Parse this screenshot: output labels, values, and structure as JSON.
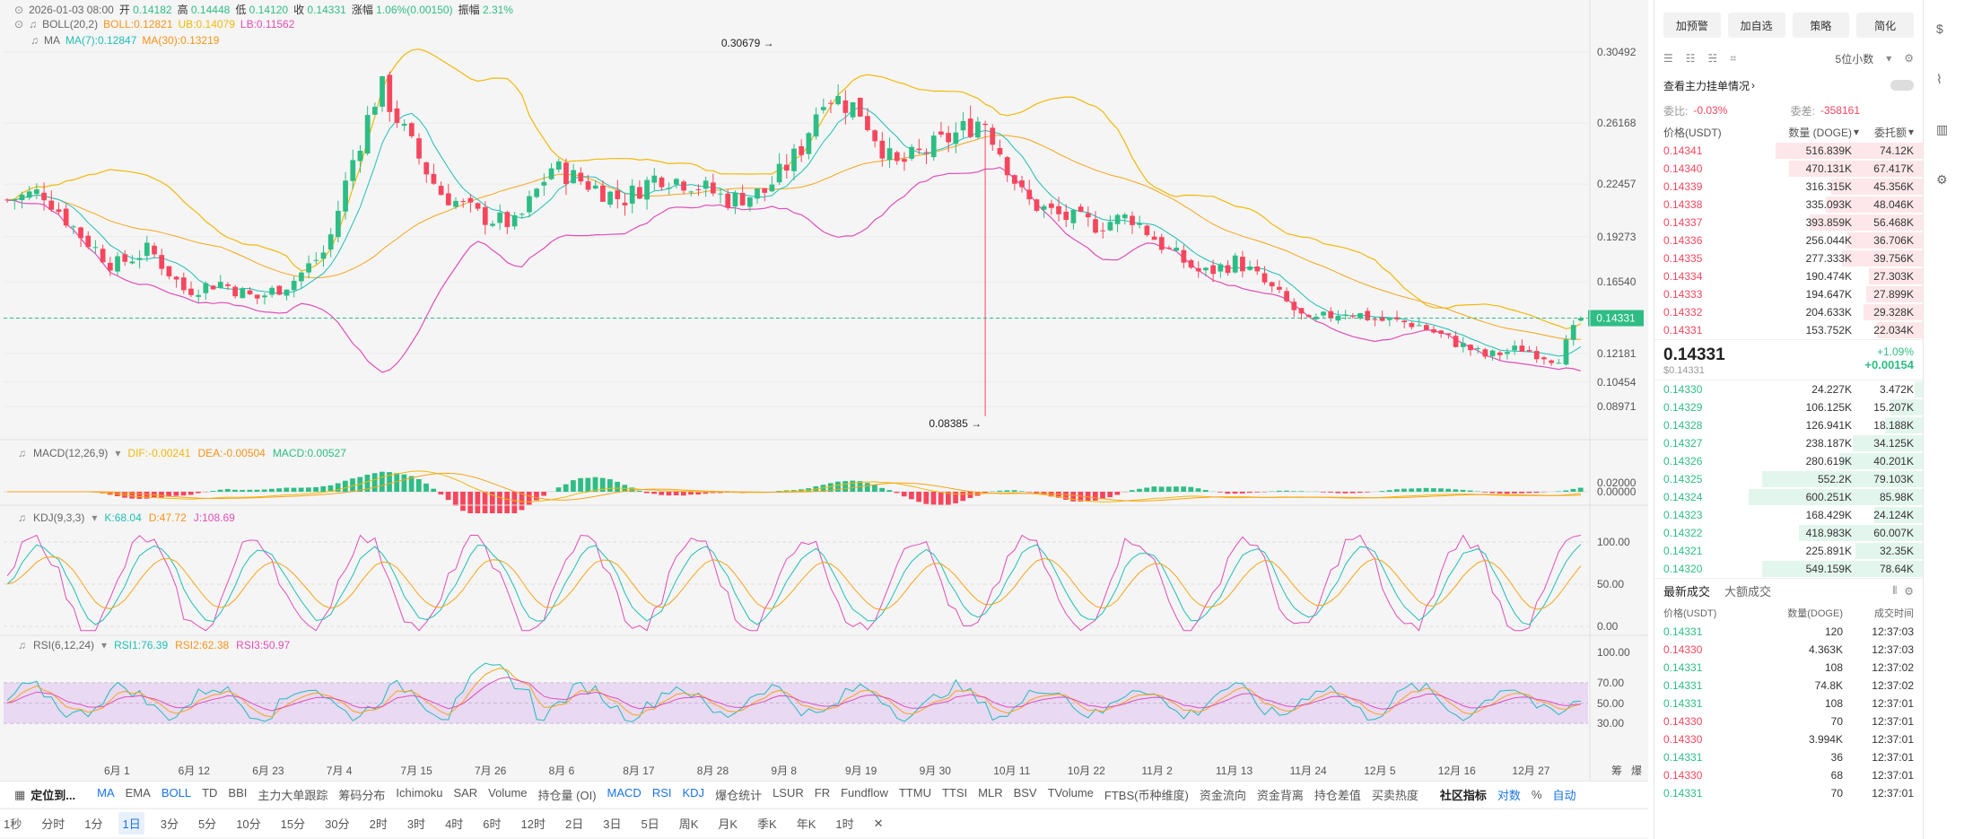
{
  "header": {
    "datetime": "2026-01-03 08:00",
    "open_label": "开",
    "open": "0.14182",
    "high_label": "高",
    "high": "0.14448",
    "low_label": "低",
    "low": "0.14120",
    "close_label": "收",
    "close": "0.14331",
    "change_label": "涨幅",
    "change": "1.06%(0.00150)",
    "amplitude_label": "振幅",
    "amplitude": "2.31%"
  },
  "boll": {
    "label": "BOLL(20,2)",
    "boll": "BOLL:0.12821",
    "ub": "UB:0.14079",
    "lb": "LB:0.11562"
  },
  "ma": {
    "label": "MA",
    "ma7": "MA(7):0.12847",
    "ma30": "MA(30):0.13219"
  },
  "price_axis": [
    "0.30492",
    "0.26168",
    "0.22457",
    "0.19273",
    "0.16540",
    "0.14331",
    "0.12181",
    "0.10454",
    "0.08971"
  ],
  "annotations": {
    "high_mark": "0.30679",
    "low_mark": "0.08385"
  },
  "macd": {
    "label": "MACD(12,26,9)",
    "dif": "DIF:-0.00241",
    "dea": "DEA:-0.00504",
    "macd": "MACD:0.00527",
    "axis": [
      "0.02000",
      "0.00000"
    ]
  },
  "kdj": {
    "label": "KDJ(9,3,3)",
    "k": "K:68.04",
    "d": "D:47.72",
    "j": "J:108.69",
    "axis": [
      "100.00",
      "50.00",
      "0.00"
    ]
  },
  "rsi": {
    "label": "RSI(6,12,24)",
    "rsi1": "RSI1:76.39",
    "rsi2": "RSI2:62.38",
    "rsi3": "RSI3:50.97",
    "axis": [
      "100.00",
      "70.00",
      "50.00",
      "30.00"
    ]
  },
  "x_axis": [
    "6月 1",
    "6月 12",
    "6月 23",
    "7月 4",
    "7月 15",
    "7月 26",
    "8月 6",
    "8月 17",
    "8月 28",
    "9月 8",
    "9月 19",
    "9月 30",
    "10月 11",
    "10月 22",
    "11月 2",
    "11月 13",
    "11月 24",
    "12月 5",
    "12月 16",
    "12月 27"
  ],
  "x_axis_extra": [
    "筹",
    "爆"
  ],
  "bottom_tabs": {
    "locate": "定位到...",
    "indicators": [
      "MA",
      "EMA",
      "BOLL",
      "TD",
      "BBI",
      "主力大单跟踪",
      "筹码分布",
      "Ichimoku",
      "SAR",
      "Volume",
      "持仓量 (OI)",
      "MACD",
      "RSI",
      "KDJ",
      "爆仓统计",
      "LSUR",
      "FR",
      "Fundflow",
      "TTMU",
      "TTSI",
      "MLR",
      "BSV",
      "TVolume",
      "FTBS(币种维度)",
      "资金流向",
      "资金背离",
      "持仓差值",
      "买卖热度"
    ],
    "community": "社区指标",
    "log": "对数",
    "pct": "%",
    "auto": "自动"
  },
  "intervals": [
    "1秒",
    "分时",
    "1分",
    "1日",
    "3分",
    "5分",
    "10分",
    "15分",
    "30分",
    "2时",
    "3时",
    "4时",
    "6时",
    "12时",
    "2日",
    "3日",
    "5日",
    "周K",
    "月K",
    "季K",
    "年K",
    "1时"
  ],
  "active_interval": "1日",
  "panel": {
    "buttons": [
      "加预警",
      "加自选",
      "策略",
      "简化"
    ],
    "decimals": "5位小数",
    "whale_label": "查看主力挂单情况",
    "ratio_label": "委比:",
    "ratio": "-0.03%",
    "diff_label": "委差:",
    "diff": "-358161",
    "col_price": "价格(USDT)",
    "col_qty": "数量 (DOGE)",
    "col_total": "委托额",
    "asks": [
      [
        "0.14341",
        "516.839K",
        "74.12K"
      ],
      [
        "0.14340",
        "470.131K",
        "67.417K"
      ],
      [
        "0.14339",
        "316.315K",
        "45.356K"
      ],
      [
        "0.14338",
        "335.093K",
        "48.046K"
      ],
      [
        "0.14337",
        "393.859K",
        "56.468K"
      ],
      [
        "0.14336",
        "256.044K",
        "36.706K"
      ],
      [
        "0.14335",
        "277.333K",
        "39.756K"
      ],
      [
        "0.14334",
        "190.474K",
        "27.303K"
      ],
      [
        "0.14333",
        "194.647K",
        "27.899K"
      ],
      [
        "0.14332",
        "204.633K",
        "29.328K"
      ],
      [
        "0.14331",
        "153.752K",
        "22.034K"
      ]
    ],
    "ask_fill": [
      0.55,
      0.5,
      0.34,
      0.36,
      0.42,
      0.28,
      0.3,
      0.2,
      0.21,
      0.22,
      0.17
    ],
    "last_price": "0.14331",
    "last_usd": "$0.14331",
    "last_pct": "+1.09%",
    "last_change": "+0.00154",
    "bids": [
      [
        "0.14330",
        "24.227K",
        "3.472K"
      ],
      [
        "0.14329",
        "106.125K",
        "15.207K"
      ],
      [
        "0.14328",
        "126.941K",
        "18.188K"
      ],
      [
        "0.14327",
        "238.187K",
        "34.125K"
      ],
      [
        "0.14326",
        "280.619K",
        "40.201K"
      ],
      [
        "0.14325",
        "552.2K",
        "79.103K"
      ],
      [
        "0.14324",
        "600.251K",
        "85.98K"
      ],
      [
        "0.14323",
        "168.429K",
        "24.124K"
      ],
      [
        "0.14322",
        "418.983K",
        "60.007K"
      ],
      [
        "0.14321",
        "225.891K",
        "32.35K"
      ],
      [
        "0.14320",
        "549.159K",
        "78.64K"
      ]
    ],
    "bid_fill": [
      0.03,
      0.12,
      0.14,
      0.26,
      0.31,
      0.6,
      0.65,
      0.18,
      0.46,
      0.25,
      0.6
    ],
    "trades_tab": "最新成交",
    "big_trades_tab": "大额成交",
    "trade_col_price": "价格(USDT)",
    "trade_col_qty": "数量(DOGE)",
    "trade_col_time": "成交时间",
    "trades": [
      [
        "0.14331",
        "120",
        "12:37:03",
        "g"
      ],
      [
        "0.14330",
        "4.363K",
        "12:37:03",
        "r"
      ],
      [
        "0.14331",
        "108",
        "12:37:02",
        "g"
      ],
      [
        "0.14331",
        "74.8K",
        "12:37:02",
        "g"
      ],
      [
        "0.14331",
        "108",
        "12:37:01",
        "g"
      ],
      [
        "0.14330",
        "70",
        "12:37:01",
        "r"
      ],
      [
        "0.14330",
        "3.994K",
        "12:37:01",
        "r"
      ],
      [
        "0.14331",
        "36",
        "12:37:01",
        "g"
      ],
      [
        "0.14330",
        "68",
        "12:37:01",
        "r"
      ],
      [
        "0.14331",
        "70",
        "12:37:01",
        "g"
      ]
    ]
  },
  "colors": {
    "up": "#2ebd85",
    "down": "#f6465d",
    "boll_upper": "#f0b90b",
    "boll_lower": "#e04fb8",
    "ma7": "#1fbfb6",
    "ma30": "#f7a41a"
  }
}
